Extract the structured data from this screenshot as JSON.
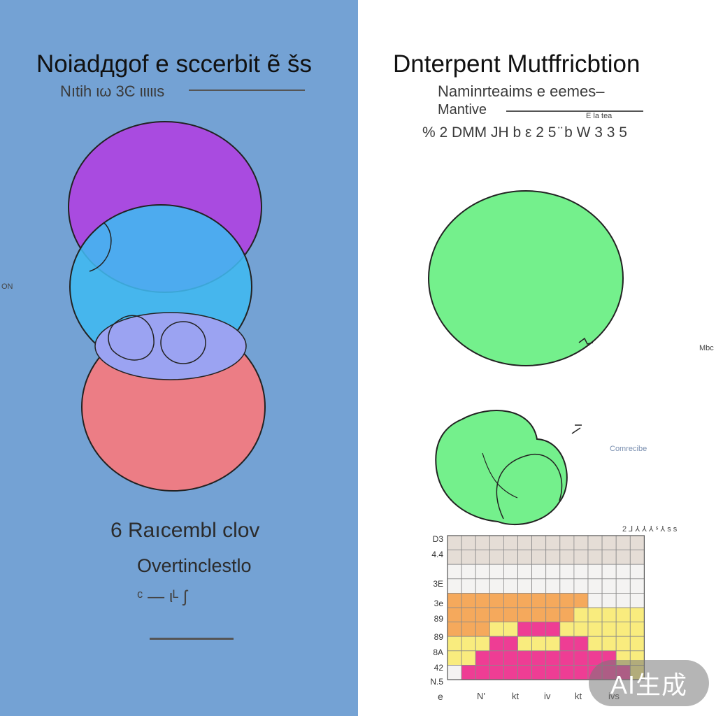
{
  "left_panel": {
    "title": "Noiadдgof e sccerbit ẽ šs",
    "subtitle": "Nıtih ιω  3Ͼ ιιιιιs",
    "side_label": "ON",
    "caption_line1": "6  Raıcembl clov",
    "caption_line2": "Overtinclestlo",
    "caption_line3": "ᶜ — ιᴸ ʃ",
    "color": "#74a2d4",
    "circle_colors": {
      "top": "#a94be0",
      "middle": "#40b8f0",
      "bottom": "#ec7d85",
      "overlap": "#9ba3f2"
    }
  },
  "right_panel": {
    "title": "Dnterpent Mutffricbtion",
    "subtitle_line1": "Naminrteaims e eemes–",
    "subtitle_line2": "Mantive",
    "subtitle_line2_small": "E la tea",
    "subtitle_line3": "% 2 DMM JH b ε 2 5   ̈ b W 3 3 5",
    "side_label": "Mbc",
    "small_label": "Comrecibe",
    "circle_color": "#74f08c",
    "heatmap_row_labels": [
      "D3",
      "4.4",
      "3E",
      "3e",
      "89",
      "89",
      "8A",
      "42",
      "N.5"
    ],
    "heatmap_bottom_label": "e",
    "heatmap_top_right": "2 ⅃ ⅄ ⅄ ⅄  ˢ  ⅄ s s",
    "heatmap_colors": {
      "orange": "#f5a95c",
      "yellow": "#f9ec7e",
      "pink": "#ee3d94",
      "light": "#f4f3f2",
      "header": "#e5ddd6"
    },
    "heatmap_x_labels": [
      "N'",
      "kt",
      "iv",
      "kt",
      "ivs"
    ]
  },
  "badge": {
    "label": "AI生成"
  }
}
